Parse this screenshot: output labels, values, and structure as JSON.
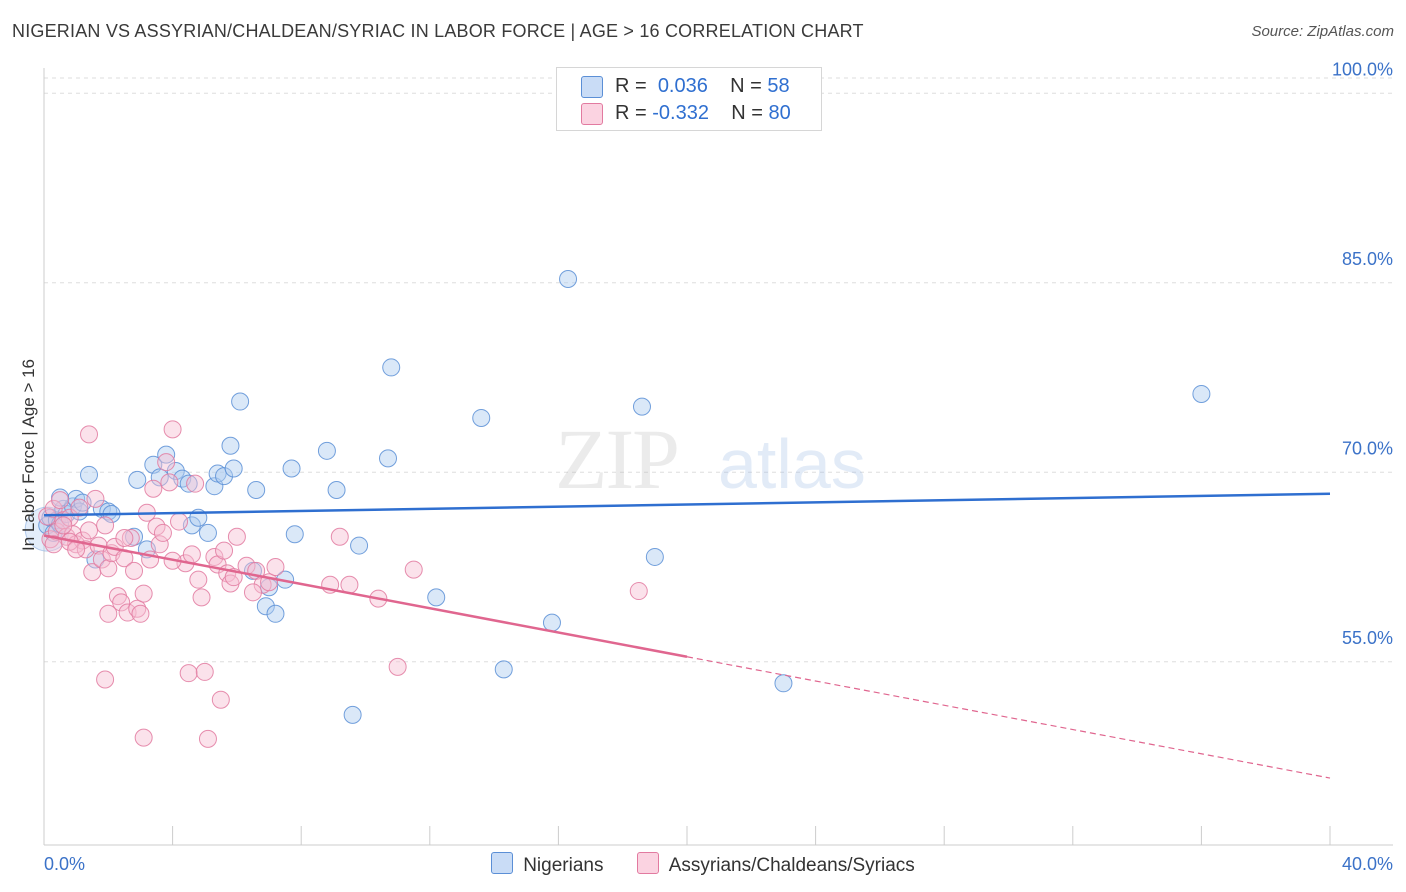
{
  "title": "NIGERIAN VS ASSYRIAN/CHALDEAN/SYRIAC IN LABOR FORCE | AGE > 16 CORRELATION CHART",
  "source": "Source: ZipAtlas.com",
  "legend": {
    "r_label": "R =",
    "n_label": "N =",
    "rows": [
      {
        "r": "0.036",
        "n": "58"
      },
      {
        "r": "-0.332",
        "n": "80"
      }
    ]
  },
  "colors": {
    "blue_fill": "#aecbf0",
    "blue_stroke": "#5b8fd6",
    "blue_line": "#2f6fd0",
    "pink_fill": "#f7bfd2",
    "pink_stroke": "#e27aa0",
    "pink_line": "#e0668f",
    "tick_label": "#3b72c8",
    "grid": "#dddddd"
  },
  "chart_data": {
    "type": "scatter",
    "title": "NIGERIAN VS ASSYRIAN/CHALDEAN/SYRIAC IN LABOR FORCE | AGE > 16 CORRELATION CHART",
    "xlabel": "",
    "ylabel": "In Labor Force | Age > 16",
    "xlim": [
      0,
      40
    ],
    "ylim": [
      40.5,
      102
    ],
    "x_tick_labels": [
      "0.0%",
      "40.0%"
    ],
    "y_ticks": [
      55,
      70,
      85,
      100
    ],
    "y_tick_labels": [
      "55.0%",
      "70.0%",
      "85.0%",
      "100.0%"
    ],
    "grid": true,
    "watermark": {
      "zip": "ZIP",
      "atlas": "atlas"
    },
    "series": [
      {
        "name": "Nigerians",
        "color": "blue",
        "r": 0.036,
        "n": 58,
        "trend": {
          "x0": 0,
          "y0": 66.6,
          "x1": 40,
          "y1": 68.3
        },
        "points": [
          [
            0.1,
            65.8
          ],
          [
            0.2,
            66.4
          ],
          [
            0.3,
            65.2
          ],
          [
            0.4,
            66.2
          ],
          [
            0.5,
            65.9
          ],
          [
            0.6,
            67.1
          ],
          [
            0.7,
            66.7
          ],
          [
            0.9,
            67.3
          ],
          [
            1.0,
            67.9
          ],
          [
            1.1,
            66.9
          ],
          [
            1.2,
            67.6
          ],
          [
            1.4,
            69.8
          ],
          [
            1.6,
            63.1
          ],
          [
            1.8,
            67.1
          ],
          [
            2.0,
            66.9
          ],
          [
            2.1,
            66.7
          ],
          [
            2.8,
            64.9
          ],
          [
            2.9,
            69.4
          ],
          [
            3.2,
            63.9
          ],
          [
            3.4,
            70.6
          ],
          [
            3.6,
            69.6
          ],
          [
            3.8,
            71.4
          ],
          [
            4.1,
            70.1
          ],
          [
            4.3,
            69.5
          ],
          [
            4.5,
            69.1
          ],
          [
            4.6,
            65.8
          ],
          [
            4.8,
            66.4
          ],
          [
            5.1,
            65.2
          ],
          [
            5.3,
            68.9
          ],
          [
            5.4,
            69.9
          ],
          [
            5.6,
            69.7
          ],
          [
            5.8,
            72.1
          ],
          [
            5.9,
            70.3
          ],
          [
            6.1,
            75.6
          ],
          [
            6.5,
            62.2
          ],
          [
            6.6,
            68.6
          ],
          [
            6.9,
            59.4
          ],
          [
            7.0,
            60.9
          ],
          [
            7.2,
            58.8
          ],
          [
            7.5,
            61.5
          ],
          [
            7.7,
            70.3
          ],
          [
            7.8,
            65.1
          ],
          [
            8.8,
            71.7
          ],
          [
            9.1,
            68.6
          ],
          [
            9.6,
            50.8
          ],
          [
            9.8,
            64.2
          ],
          [
            10.7,
            71.1
          ],
          [
            10.8,
            78.3
          ],
          [
            12.2,
            60.1
          ],
          [
            13.6,
            74.3
          ],
          [
            14.3,
            54.4
          ],
          [
            15.8,
            58.1
          ],
          [
            16.3,
            85.3
          ],
          [
            18.6,
            75.2
          ],
          [
            19.0,
            63.3
          ],
          [
            23.0,
            53.3
          ],
          [
            36.0,
            76.2
          ],
          [
            0.5,
            68.0
          ]
        ]
      },
      {
        "name": "Assyrians/Chaldeans/Syriacs",
        "color": "pink",
        "r": -0.332,
        "n": 80,
        "trend": {
          "x0": 0,
          "y0": 65.0,
          "x1": 20.0,
          "y1": 55.4,
          "dash_x1": 40,
          "dash_y1": 45.8
        },
        "points": [
          [
            0.1,
            66.5
          ],
          [
            0.2,
            64.7
          ],
          [
            0.3,
            67.1
          ],
          [
            0.4,
            65.3
          ],
          [
            0.5,
            67.8
          ],
          [
            0.6,
            66.2
          ],
          [
            0.7,
            64.9
          ],
          [
            0.8,
            66.4
          ],
          [
            0.9,
            65.1
          ],
          [
            1.0,
            64.3
          ],
          [
            1.1,
            67.2
          ],
          [
            1.2,
            64.6
          ],
          [
            1.3,
            63.9
          ],
          [
            1.4,
            65.4
          ],
          [
            1.5,
            62.1
          ],
          [
            1.6,
            67.9
          ],
          [
            1.7,
            64.2
          ],
          [
            1.8,
            63.1
          ],
          [
            1.9,
            65.8
          ],
          [
            2.0,
            62.4
          ],
          [
            2.1,
            63.6
          ],
          [
            2.2,
            64.1
          ],
          [
            2.3,
            60.2
          ],
          [
            2.4,
            59.7
          ],
          [
            2.5,
            63.2
          ],
          [
            2.6,
            58.9
          ],
          [
            2.7,
            64.8
          ],
          [
            2.8,
            62.2
          ],
          [
            2.9,
            59.2
          ],
          [
            3.0,
            58.8
          ],
          [
            3.1,
            60.4
          ],
          [
            3.2,
            66.8
          ],
          [
            3.3,
            63.1
          ],
          [
            3.4,
            68.7
          ],
          [
            3.5,
            65.7
          ],
          [
            3.6,
            64.3
          ],
          [
            3.7,
            65.2
          ],
          [
            3.8,
            70.8
          ],
          [
            3.9,
            69.2
          ],
          [
            4.0,
            73.4
          ],
          [
            4.2,
            66.1
          ],
          [
            4.4,
            62.8
          ],
          [
            4.5,
            54.1
          ],
          [
            4.6,
            63.5
          ],
          [
            4.7,
            69.1
          ],
          [
            4.8,
            61.5
          ],
          [
            4.9,
            60.1
          ],
          [
            5.0,
            54.2
          ],
          [
            5.1,
            48.9
          ],
          [
            5.3,
            63.3
          ],
          [
            5.4,
            62.7
          ],
          [
            5.5,
            52.0
          ],
          [
            5.6,
            63.8
          ],
          [
            5.7,
            62.0
          ],
          [
            5.8,
            61.2
          ],
          [
            5.9,
            61.7
          ],
          [
            6.0,
            64.9
          ],
          [
            6.3,
            62.6
          ],
          [
            6.6,
            62.2
          ],
          [
            6.8,
            61.1
          ],
          [
            7.0,
            61.3
          ],
          [
            7.2,
            62.5
          ],
          [
            8.9,
            61.1
          ],
          [
            9.2,
            64.9
          ],
          [
            9.5,
            61.1
          ],
          [
            10.4,
            60.0
          ],
          [
            11.0,
            54.6
          ],
          [
            11.5,
            62.3
          ],
          [
            18.5,
            60.6
          ],
          [
            0.3,
            64.3
          ],
          [
            1.4,
            73.0
          ],
          [
            2.0,
            58.8
          ],
          [
            3.1,
            49.0
          ],
          [
            1.9,
            53.6
          ],
          [
            0.8,
            64.5
          ],
          [
            1.0,
            63.9
          ],
          [
            2.5,
            64.8
          ],
          [
            0.6,
            65.8
          ],
          [
            4.0,
            63.0
          ],
          [
            6.5,
            60.5
          ]
        ]
      }
    ]
  }
}
